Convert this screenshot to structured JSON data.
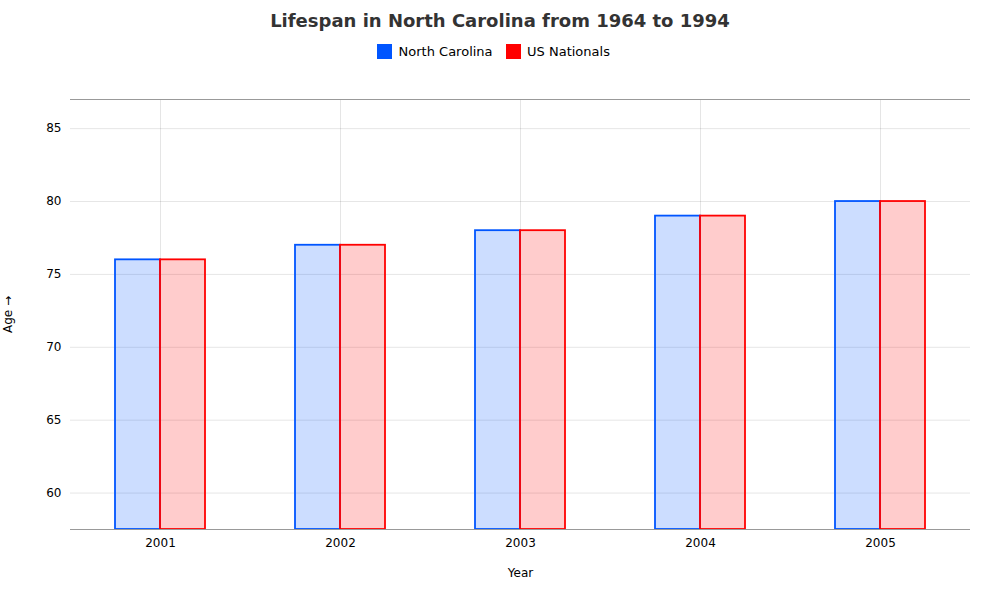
{
  "chart_data": {
    "type": "bar",
    "title": "Lifespan in North Carolina from 1964 to 1994",
    "xlabel": "Year",
    "ylabel": "Age",
    "categories": [
      "2001",
      "2002",
      "2003",
      "2004",
      "2005"
    ],
    "series": [
      {
        "name": "North Carolina",
        "color": "#0055ff",
        "values": [
          76,
          77,
          78,
          79,
          80
        ]
      },
      {
        "name": "US Nationals",
        "color": "#ff0000",
        "values": [
          76,
          77,
          78,
          79,
          80
        ]
      }
    ],
    "ylim": [
      57.5,
      87
    ],
    "yticks": [
      60,
      65,
      70,
      75,
      80,
      85
    ],
    "grid": true,
    "legend": "top"
  }
}
